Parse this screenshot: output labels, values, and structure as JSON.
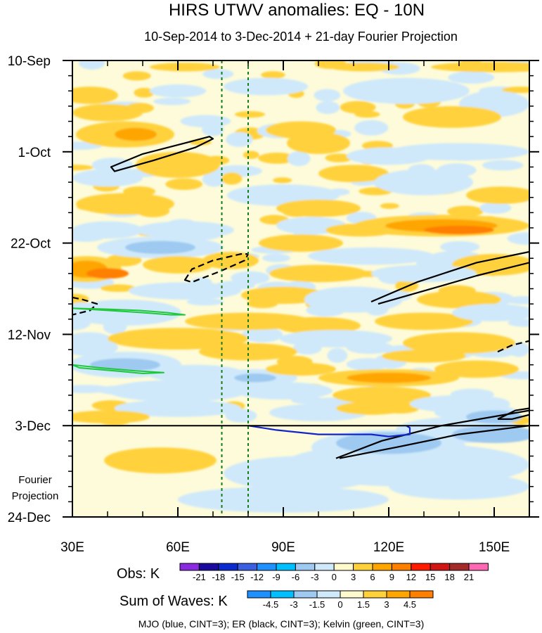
{
  "chart_data": {
    "type": "heatmap",
    "title": "HIRS UTWV anomalies: EQ - 10N",
    "subtitle": "10-Sep-2014 to 3-Dec-2014 + 21-day Fourier Projection",
    "x_tick_labels": [
      "30E",
      "60E",
      "90E",
      "120E",
      "150E"
    ],
    "x_ticks": [
      30,
      60,
      90,
      120,
      150
    ],
    "xlim": [
      30,
      160
    ],
    "y_tick_labels": [
      "10-Sep",
      "1-Oct",
      "22-Oct",
      "12-Nov",
      "3-Dec",
      "24-Dec"
    ],
    "y_ticks_days": [
      0,
      21,
      42,
      63,
      84,
      105
    ],
    "ylim_days": [
      0,
      105
    ],
    "projection_start_day": 84,
    "projection_label_lines": [
      "Fourier",
      "Projection"
    ],
    "reference_lines_lon": [
      72.5,
      80
    ],
    "obs_colorbar": {
      "label": "Obs: K",
      "tick_labels": [
        "-21",
        "-18",
        "-15",
        "-12",
        "-9",
        "-6",
        "-3",
        "0",
        "3",
        "6",
        "9",
        "12",
        "15",
        "18",
        "21"
      ],
      "colors": [
        "#8a2be2",
        "#1a0a9e",
        "#0b2ad0",
        "#3a5fe0",
        "#1e90ff",
        "#00bfff",
        "#9ec9f0",
        "#cfe9fb",
        "#fffacd",
        "#ffd23c",
        "#ffa500",
        "#ff7f00",
        "#ff1a00",
        "#d11414",
        "#a52a2a",
        "#ff69b4"
      ]
    },
    "waves_colorbar": {
      "label": "Sum of Waves: K",
      "tick_labels": [
        "-4.5",
        "-3",
        "-1.5",
        "0",
        "1.5",
        "3",
        "4.5"
      ],
      "colors": [
        "#1e90ff",
        "#00bfff",
        "#9ec9f0",
        "#cfe9fb",
        "#fffacd",
        "#ffd23c",
        "#ffa500",
        "#ff7f00"
      ]
    },
    "legend_text": "MJO (blue, CINT=3); ER (black, CINT=3); Kelvin (green, CINT=3)",
    "field_colors": {
      "background": "#fdfbd9",
      "neg1": "#cfe9fb",
      "neg2": "#9ec9f0",
      "neg3": "#00bfff",
      "pos1": "#ffd23c",
      "pos2": "#ffa500",
      "pos3": "#ff7f00",
      "mjo": "#1424c8",
      "er": "#000000",
      "kelvin": "#22c83c",
      "reference": "#1b7a1b"
    },
    "contours": [
      {
        "wave": "ER",
        "sign": "positive",
        "points_lon_day": [
          [
            41,
            24.5
          ],
          [
            50,
            21.5
          ],
          [
            62,
            19
          ],
          [
            69,
            17.5
          ],
          [
            70,
            18
          ],
          [
            65,
            20
          ],
          [
            53,
            23
          ],
          [
            42,
            25.5
          ]
        ]
      },
      {
        "wave": "ER",
        "sign": "negative",
        "points_lon_day": [
          [
            62,
            50.5
          ],
          [
            64,
            48
          ],
          [
            70,
            46
          ],
          [
            78,
            44.5
          ],
          [
            80,
            44.5
          ],
          [
            79,
            46
          ],
          [
            72,
            48.5
          ],
          [
            64,
            51
          ]
        ]
      },
      {
        "wave": "ER",
        "sign": "negative",
        "points_lon_day": [
          [
            30,
            54.5
          ],
          [
            33,
            55
          ],
          [
            37,
            56
          ],
          [
            35,
            57.5
          ],
          [
            30,
            58.5
          ]
        ]
      },
      {
        "wave": "ER",
        "sign": "positive",
        "points_lon_day": [
          [
            115,
            55.5
          ],
          [
            128,
            51
          ],
          [
            145,
            46.5
          ],
          [
            160,
            44
          ]
        ]
      },
      {
        "wave": "ER",
        "sign": "positive",
        "points_lon_day": [
          [
            160,
            46.5
          ],
          [
            145,
            49.5
          ],
          [
            130,
            53
          ],
          [
            117,
            56
          ]
        ]
      },
      {
        "wave": "ER",
        "sign": "negative",
        "points_lon_day": [
          [
            151,
            67
          ],
          [
            155,
            65.5
          ],
          [
            160,
            64.5
          ]
        ]
      },
      {
        "wave": "ER",
        "sign": "positive",
        "points_lon_day": [
          [
            105,
            91.5
          ],
          [
            118,
            87.5
          ],
          [
            135,
            84
          ],
          [
            160,
            80.5
          ]
        ]
      },
      {
        "wave": "ER",
        "sign": "positive",
        "points_lon_day": [
          [
            160,
            84
          ],
          [
            140,
            86
          ],
          [
            122,
            89
          ],
          [
            106,
            91.5
          ]
        ]
      },
      {
        "wave": "ER",
        "sign": "positive",
        "points_lon_day": [
          [
            151,
            82.5
          ],
          [
            156,
            80.5
          ],
          [
            160,
            80
          ]
        ]
      },
      {
        "wave": "ER",
        "sign": "positive",
        "points_lon_day": [
          [
            151,
            82.5
          ],
          [
            155,
            82.5
          ],
          [
            160,
            81.5
          ]
        ]
      },
      {
        "wave": "MJO",
        "sign": "positive",
        "points_lon_day": [
          [
            80,
            84
          ],
          [
            88,
            85
          ],
          [
            100,
            86
          ],
          [
            115,
            86
          ],
          [
            120,
            86.5
          ],
          [
            126,
            86
          ],
          [
            126,
            84.5
          ],
          [
            125,
            84
          ]
        ]
      },
      {
        "wave": "Kelvin",
        "sign": "positive",
        "points_lon_day": [
          [
            30,
            57
          ],
          [
            40,
            57.5
          ],
          [
            50,
            58
          ],
          [
            58,
            58.5
          ],
          [
            62,
            58.5
          ],
          [
            57,
            58
          ],
          [
            49,
            57.5
          ],
          [
            40,
            57.2
          ]
        ]
      },
      {
        "wave": "Kelvin",
        "sign": "positive",
        "points_lon_day": [
          [
            30,
            70
          ],
          [
            38,
            70.7
          ],
          [
            48,
            71.4
          ],
          [
            56,
            71.8
          ],
          [
            50,
            72
          ],
          [
            42,
            71.4
          ],
          [
            32,
            70.7
          ]
        ]
      }
    ]
  }
}
